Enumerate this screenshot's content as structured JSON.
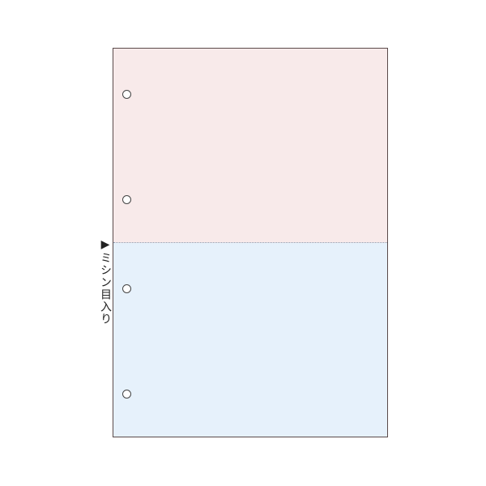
{
  "colors": {
    "top_section": "#f8eaea",
    "bottom_section": "#e6f1fb",
    "perforation": "#8a9bb0",
    "border": "#5a4a4a"
  },
  "label": {
    "text": "▶ミシン目入り"
  },
  "holes": {
    "count": 4
  }
}
